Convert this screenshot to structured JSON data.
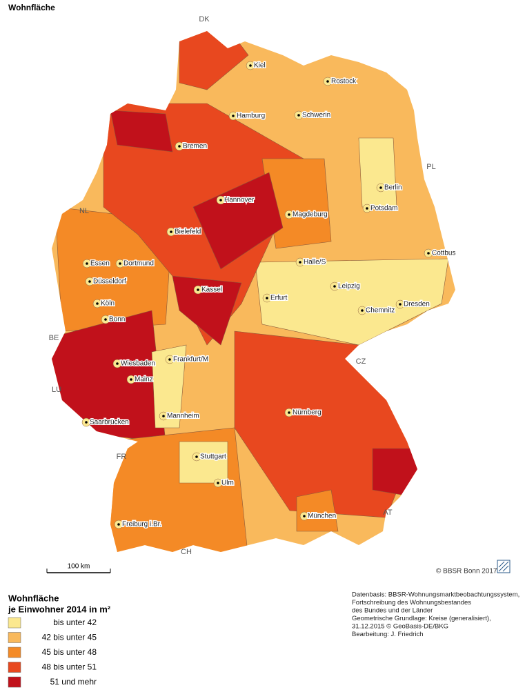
{
  "title": "Wohnfläche",
  "countries": [
    "DK",
    "PL",
    "NL",
    "BE",
    "LU",
    "FR",
    "CH",
    "AT",
    "CZ"
  ],
  "cities": [
    "Kiel",
    "Rostock",
    "Hamburg",
    "Schwerin",
    "Bremen",
    "Berlin",
    "Potsdam",
    "Hannover",
    "Magdeburg",
    "Bielefeld",
    "Cottbus",
    "Essen",
    "Dortmund",
    "Halle/S",
    "Düsseldorf",
    "Kassel",
    "Leipzig",
    "Erfurt",
    "Dresden",
    "Köln",
    "Chemnitz",
    "Bonn",
    "Wiesbaden",
    "Frankfurt/M",
    "Mainz",
    "Nürnberg",
    "Mannheim",
    "Saarbrücken",
    "Stuttgart",
    "Ulm",
    "München",
    "Freiburg i.Br."
  ],
  "scale_bar": "100 km",
  "credit": "© BBSR Bonn 2017",
  "legend": {
    "title": [
      "Wohnfläche",
      "je Einwohner 2014 in m²"
    ],
    "items": [
      {
        "label": "bis unter 42",
        "color": "#fbe88f"
      },
      {
        "label": "42 bis unter 45",
        "color": "#f9b95c"
      },
      {
        "label": "45 bis unter 48",
        "color": "#f48a26"
      },
      {
        "label": "48 bis unter 51",
        "color": "#e8481f"
      },
      {
        "label": "51 und mehr",
        "color": "#c1111b"
      }
    ]
  },
  "source": [
    "Datenbasis: BBSR-Wohnungsmarktbeobachtungssystem,",
    "Fortschreibung des Wohnungsbestandes",
    "des Bundes und der Länder",
    "Geometrische Grundlage: Kreise (generalisiert),",
    "31.12.2015 © GeoBasis-DE/BKG",
    "Bearbeitung: J. Friedrich"
  ]
}
